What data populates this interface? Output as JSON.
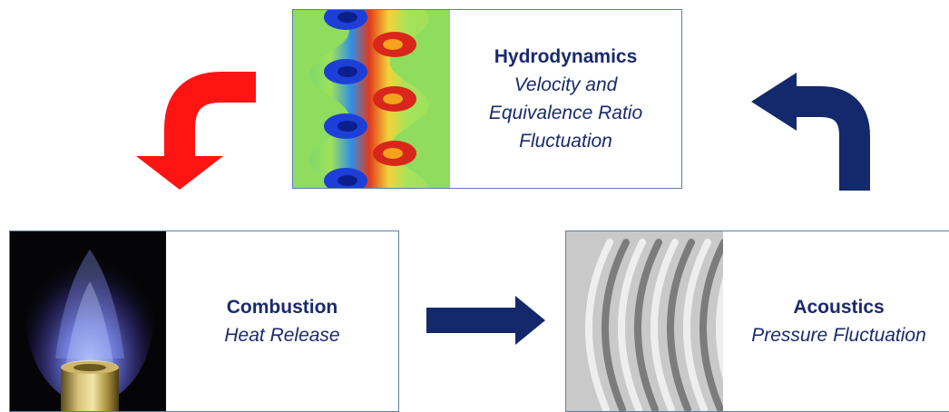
{
  "colors": {
    "text": "#1a2a6c",
    "navy_arrow": "#13296b",
    "red_arrow": "#ff1414",
    "box_border": "#5b7fa8"
  },
  "hydrodynamics": {
    "title": "Hydrodynamics",
    "subtitle_lines": [
      "Velocity and",
      "Equivalence Ratio",
      "Fluctuation"
    ],
    "image_icon": "vortex-flow-simulation-icon"
  },
  "combustion": {
    "title": "Combustion",
    "subtitle_lines": [
      "Heat Release"
    ],
    "image_icon": "flame-burner-icon"
  },
  "acoustics": {
    "title": "Acoustics",
    "subtitle_lines": [
      "Pressure Fluctuation"
    ],
    "image_icon": "pressure-wave-icon"
  }
}
